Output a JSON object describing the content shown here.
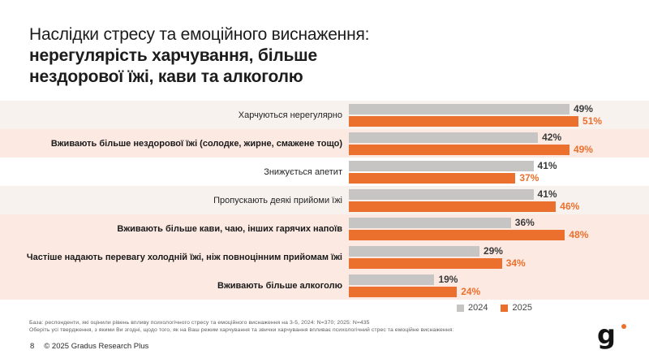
{
  "slide": {
    "title_regular": "Наслідки стресу та емоційного виснаження:",
    "title_bold_line1": "нерегулярість харчування, більше",
    "title_bold_line2": "нездорової їжі, кави та алкоголю"
  },
  "chart_data": {
    "type": "bar",
    "orientation": "horizontal",
    "unit": "%",
    "xlim": [
      0,
      55
    ],
    "grid": false,
    "legend_position": "bottom-center",
    "categories": [
      "Харчуються нерегулярно",
      "Вживають більше нездорової їжі (солодке, жирне, смажене тощо)",
      "Знижується апетит",
      "Пропускають деякі прийоми їжі",
      "Вживають більше кави, чаю, інших гарячих напоїв",
      "Частіше надають перевагу холодній їжі, ніж повноцінним прийомам їжі",
      "Вживають більше алкоголю"
    ],
    "series": [
      {
        "name": "2024",
        "bar_color": "#C7C5C3",
        "value_color": "#3B3B3B",
        "values": [
          49,
          42,
          41,
          41,
          36,
          29,
          19
        ]
      },
      {
        "name": "2025",
        "bar_color": "#EC702D",
        "value_color": "#EC702D",
        "values": [
          51,
          49,
          37,
          46,
          48,
          34,
          24
        ]
      }
    ],
    "emphasized_rows": [
      false,
      true,
      false,
      false,
      true,
      true,
      true
    ],
    "row_backgrounds": [
      "light",
      "highlight",
      "white",
      "light",
      "highlight",
      "highlight",
      "highlight"
    ]
  },
  "footer": {
    "base_note": "База: респонденти, які оцінили рівень впливу психологічного стресу та емоційного виснаження на 3-5, 2024: N=370; 2025: N=435",
    "question_note": "Оберіть усі твердження, з якими Ви згодні, щодо того, як на Ваш режим харчування та звички харчування впливає психологічний стрес та емоційне виснаження:"
  },
  "page": {
    "number": "8",
    "copyright": "© 2025 Gradus Research Plus"
  },
  "logo": {
    "letter": "g",
    "dot_color": "#EC702D"
  },
  "colors": {
    "row_light": "#F8F2EF",
    "row_highlight": "#FBE9E2",
    "bar_gray": "#C7C5C3",
    "bar_orange": "#EC702D"
  }
}
